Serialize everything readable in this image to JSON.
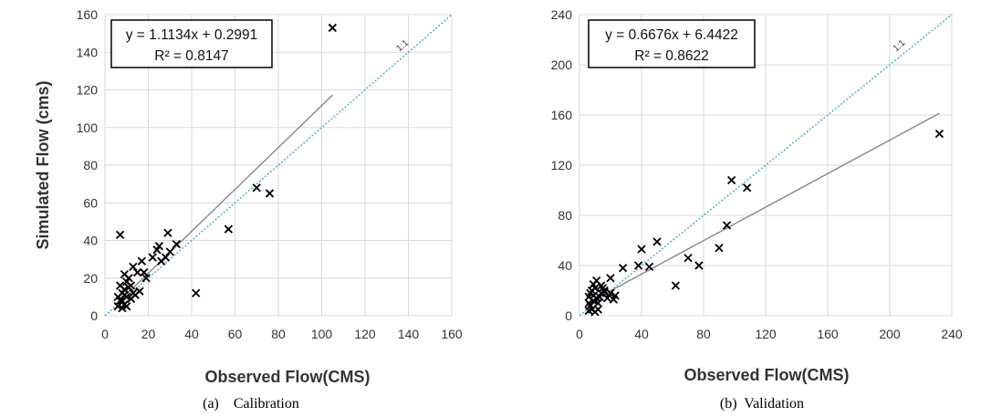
{
  "chart_data": [
    {
      "id": "calibration",
      "type": "scatter",
      "xlabel": "Observed Flow(CMS)",
      "ylabel": "Simulated Flow (cms)",
      "xlim": [
        0,
        160
      ],
      "ylim": [
        0,
        160
      ],
      "xticks": [
        0,
        20,
        40,
        60,
        80,
        100,
        120,
        140,
        160
      ],
      "yticks": [
        0,
        20,
        40,
        60,
        80,
        100,
        120,
        140,
        160
      ],
      "grid": true,
      "caption": "(a)    Calibration",
      "equation": "y = 1.1134x + 0.2991",
      "r2": "R² = 0.8147",
      "identity_label": "1:1",
      "trendline": {
        "slope": 1.1134,
        "intercept": 0.2991,
        "x_range": [
          5,
          105
        ]
      },
      "points": [
        [
          7,
          43
        ],
        [
          8,
          4
        ],
        [
          9,
          6
        ],
        [
          7,
          8
        ],
        [
          10,
          5
        ],
        [
          6,
          10
        ],
        [
          8,
          12
        ],
        [
          9,
          14
        ],
        [
          7,
          16
        ],
        [
          10,
          18
        ],
        [
          9,
          22
        ],
        [
          11,
          20
        ],
        [
          12,
          9
        ],
        [
          13,
          12
        ],
        [
          14,
          11
        ],
        [
          12,
          16
        ],
        [
          13,
          26
        ],
        [
          16,
          13
        ],
        [
          15,
          23
        ],
        [
          17,
          29
        ],
        [
          18,
          23
        ],
        [
          19,
          20
        ],
        [
          22,
          31
        ],
        [
          24,
          35
        ],
        [
          25,
          37
        ],
        [
          29,
          44
        ],
        [
          26,
          29
        ],
        [
          28,
          31
        ],
        [
          30,
          34
        ],
        [
          33,
          38
        ],
        [
          42,
          12
        ],
        [
          57,
          46
        ],
        [
          70,
          68
        ],
        [
          76,
          65
        ],
        [
          105,
          153
        ],
        [
          6,
          5
        ],
        [
          8,
          8
        ],
        [
          10,
          10
        ],
        [
          11,
          15
        ],
        [
          9,
          11
        ]
      ]
    },
    {
      "id": "validation",
      "type": "scatter",
      "xlabel": "Observed Flow(CMS)",
      "ylabel": "",
      "xlim": [
        0,
        240
      ],
      "ylim": [
        0,
        240
      ],
      "xticks": [
        0,
        40,
        80,
        120,
        160,
        200,
        240
      ],
      "yticks": [
        0,
        40,
        80,
        120,
        160,
        200,
        240
      ],
      "grid": true,
      "caption": "(b)  Validation",
      "equation": "y = 0.6676x + 6.4422",
      "r2": "R² = 0.8622",
      "identity_label": "1:1",
      "trendline": {
        "slope": 0.6676,
        "intercept": 6.4422,
        "x_range": [
          5,
          232
        ]
      },
      "points": [
        [
          6,
          4
        ],
        [
          7,
          8
        ],
        [
          8,
          5
        ],
        [
          9,
          12
        ],
        [
          6,
          15
        ],
        [
          7,
          18
        ],
        [
          8,
          20
        ],
        [
          10,
          22
        ],
        [
          9,
          25
        ],
        [
          11,
          28
        ],
        [
          12,
          10
        ],
        [
          13,
          15
        ],
        [
          14,
          18
        ],
        [
          15,
          22
        ],
        [
          16,
          19
        ],
        [
          12,
          5
        ],
        [
          10,
          3
        ],
        [
          18,
          14
        ],
        [
          20,
          30
        ],
        [
          22,
          13
        ],
        [
          23,
          16
        ],
        [
          28,
          38
        ],
        [
          38,
          40
        ],
        [
          40,
          53
        ],
        [
          45,
          39
        ],
        [
          50,
          59
        ],
        [
          62,
          24
        ],
        [
          70,
          46
        ],
        [
          77,
          40
        ],
        [
          90,
          54
        ],
        [
          95,
          72
        ],
        [
          98,
          108
        ],
        [
          108,
          102
        ],
        [
          232,
          145
        ],
        [
          6,
          10
        ],
        [
          9,
          16
        ],
        [
          11,
          14
        ],
        [
          14,
          24
        ],
        [
          16,
          20
        ],
        [
          20,
          18
        ]
      ]
    }
  ]
}
